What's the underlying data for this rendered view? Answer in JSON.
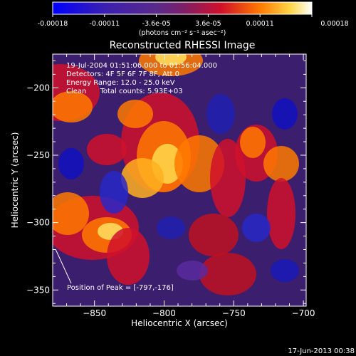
{
  "colors": {
    "background": "#000000",
    "foreground": "#ffffff"
  },
  "colorbar": {
    "ticks": [
      "-0.00018",
      "-0.00011",
      "-3.6e-05",
      "3.6e-05",
      "0.00011",
      "0.00018"
    ],
    "units": "(photons cm⁻² s⁻¹ asec⁻²)",
    "range": [
      -0.00018,
      0.00018
    ]
  },
  "chart_data": {
    "type": "heatmap",
    "title": "Reconstructed RHESSI Image",
    "xlabel": "Heliocentric X (arcsec)",
    "ylabel": "Heliocentric Y (arcsec)",
    "xlim": [
      -880,
      -698
    ],
    "ylim": [
      -362,
      -175
    ],
    "xticks": [
      -850,
      -800,
      -750,
      -700
    ],
    "yticks": [
      -350,
      -300,
      -250,
      -200
    ],
    "info_lines": [
      "19-Jul-2004 01:51:06.000 to 01:56:04.000",
      "Detectors: 4F 5F 6F 7F 8F, Att 0",
      "Energy Range: 12.0 - 25.0 keV",
      "Clean      Total counts: 5.93E+03"
    ],
    "peak_label": "Position of Peak = [-797,-176]",
    "peak": [
      -797,
      -176
    ],
    "grid": false
  },
  "footer": {
    "timestamp": "17-Jun-2013 00:38"
  }
}
